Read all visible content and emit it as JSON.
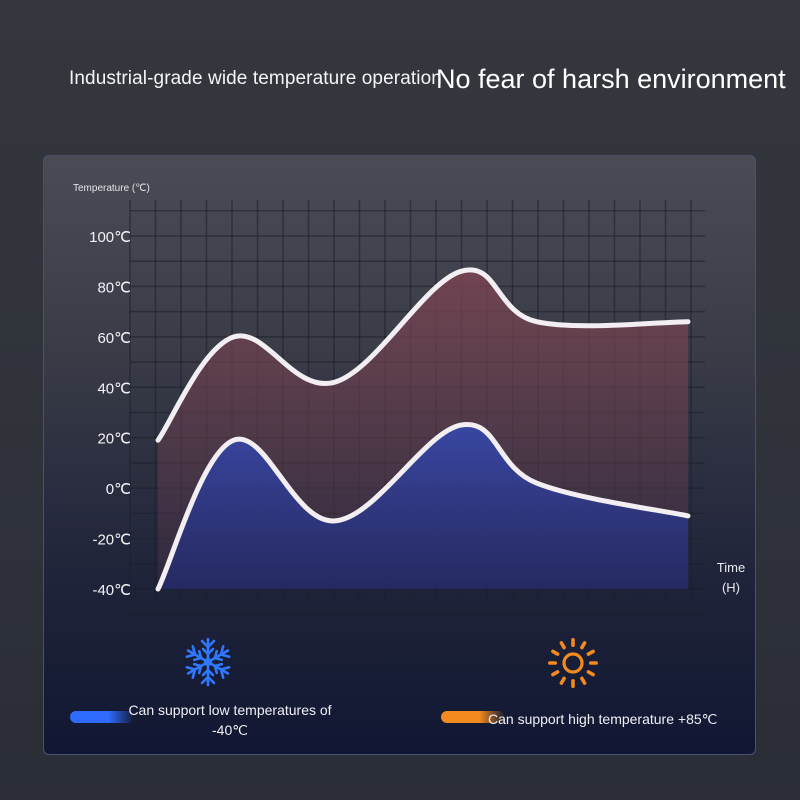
{
  "headline": {
    "left": "Industrial-grade wide temperature operation",
    "right": "No fear of harsh environment"
  },
  "chart_data": {
    "type": "area",
    "ylabel": "Temperature (℃)",
    "xlabel_line1": "Time",
    "xlabel_line2": "(H)",
    "ylim": [
      -40,
      100
    ],
    "y_ticks": [
      "100℃",
      "80℃",
      "60℃",
      "40℃",
      "20℃",
      "0℃",
      "-20℃",
      "-40℃"
    ],
    "y_tick_values": [
      100,
      80,
      60,
      40,
      20,
      0,
      -20,
      -40
    ],
    "grid": true,
    "x": [
      0,
      3,
      7,
      12,
      15,
      21
    ],
    "series": [
      {
        "values": [
          19,
          60,
          42,
          86,
          66,
          66
        ],
        "color": "#f2eef2"
      },
      {
        "values": [
          -40,
          19,
          -13,
          25,
          2,
          -11
        ],
        "color": "#f2eef2"
      }
    ]
  },
  "legend": {
    "low": {
      "icon": "snowflake-icon",
      "text_line1": "Can support low temperatures of",
      "text_line2": "-40℃",
      "color": "#2f6bff"
    },
    "high": {
      "icon": "sun-icon",
      "text": "Can support high temperature +85℃",
      "color": "#f28a1e"
    }
  }
}
